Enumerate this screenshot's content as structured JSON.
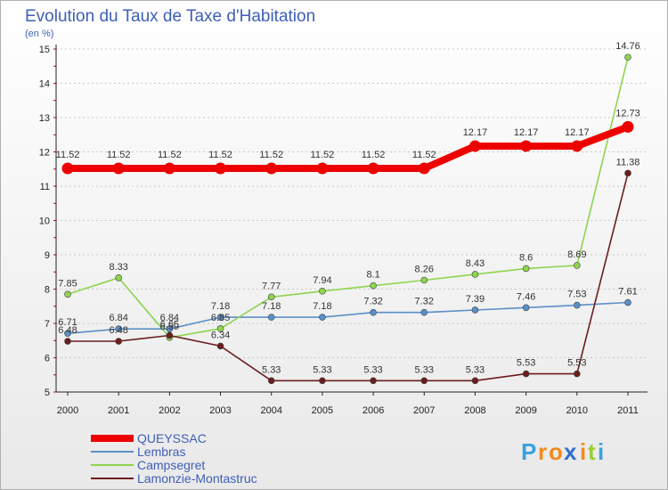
{
  "chart_data": {
    "type": "line",
    "title": "Evolution du Taux de Taxe d'Habitation",
    "subtitle": "(en %)",
    "x": [
      "2000",
      "2001",
      "2002",
      "2003",
      "2004",
      "2005",
      "2006",
      "2007",
      "2008",
      "2009",
      "2010",
      "2011"
    ],
    "ylim": [
      5,
      15
    ],
    "yticks": [
      5,
      6,
      7,
      8,
      9,
      10,
      11,
      12,
      13,
      14,
      15
    ],
    "grid": "horizontal",
    "legend_position": "bottom-left",
    "series": [
      {
        "name": "QUEYSSAC",
        "color": "#ee0000",
        "thick": true,
        "values": [
          11.52,
          11.52,
          11.52,
          11.52,
          11.52,
          11.52,
          11.52,
          11.52,
          12.17,
          12.17,
          12.17,
          12.73
        ]
      },
      {
        "name": "Lembras",
        "color": "#5b8fc8",
        "thick": false,
        "values": [
          6.71,
          6.84,
          6.84,
          7.18,
          7.18,
          7.18,
          7.32,
          7.32,
          7.39,
          7.46,
          7.53,
          7.61
        ]
      },
      {
        "name": "Campsegret",
        "color": "#8ed44f",
        "thick": false,
        "values": [
          7.85,
          8.33,
          6.59,
          6.85,
          7.77,
          7.94,
          8.1,
          8.26,
          8.43,
          8.6,
          8.69,
          14.76
        ]
      },
      {
        "name": "Lamonzie-Montastruc",
        "color": "#6b1d1d",
        "thick": false,
        "values": [
          6.48,
          6.48,
          6.65,
          6.34,
          5.33,
          5.33,
          5.33,
          5.33,
          5.33,
          5.53,
          5.53,
          11.38
        ]
      }
    ]
  },
  "logo": {
    "text": "Proxiti",
    "letters": [
      "P",
      "r",
      "o",
      "x",
      "i",
      "t",
      "i"
    ],
    "colors": [
      "#3aa0e0",
      "#f08a1c",
      "#f08a1c",
      "#2f6fcf",
      "#f08a1c",
      "#9acd32",
      "#3aa0e0"
    ]
  }
}
